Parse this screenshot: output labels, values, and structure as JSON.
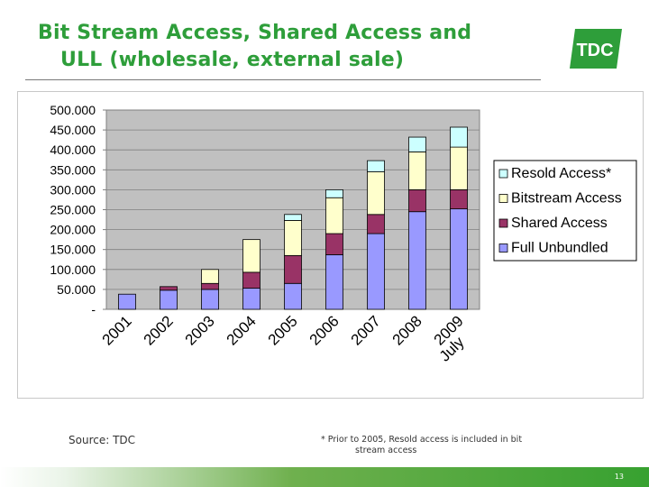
{
  "title": {
    "line1": "Bit Stream Access, Shared Access and",
    "line2": "ULL (wholesale, external sale)"
  },
  "logo": {
    "text": "TDC",
    "color": "#2e9e3a"
  },
  "source": "Source: TDC",
  "footnote": {
    "line1": "* Prior to 2005, Resold access is included in bit",
    "line2": "stream access"
  },
  "page_number": "13",
  "chart_data": {
    "type": "bar",
    "stacked": true,
    "categories": [
      "2001",
      "2002",
      "2003",
      "2004",
      "2005",
      "2006",
      "2007",
      "2008",
      "July 2009"
    ],
    "series": [
      {
        "name": "Full Unbundled",
        "color": "#9999ff",
        "values": [
          38000,
          48000,
          50000,
          53000,
          65000,
          137000,
          190000,
          245000,
          252000
        ]
      },
      {
        "name": "Shared Access",
        "color": "#993366",
        "values": [
          0,
          9000,
          15000,
          40000,
          70000,
          53000,
          48000,
          55000,
          48000
        ]
      },
      {
        "name": "Bitstream Access",
        "color": "#ffffcc",
        "values": [
          0,
          0,
          35000,
          82000,
          88000,
          90000,
          107000,
          95000,
          107000
        ]
      },
      {
        "name": "Resold Access*",
        "color": "#ccffff",
        "values": [
          0,
          0,
          0,
          0,
          15000,
          20000,
          28000,
          37000,
          50000
        ]
      }
    ],
    "ylim": [
      0,
      500000
    ],
    "yticks": [
      0,
      50000,
      100000,
      150000,
      200000,
      250000,
      300000,
      350000,
      400000,
      450000,
      500000
    ],
    "ytick_labels": [
      "-",
      "50.000",
      "100.000",
      "150.000",
      "200.000",
      "250.000",
      "300.000",
      "350.000",
      "400.000",
      "450.000",
      "500.000"
    ],
    "plot_background": "#c0c0c0",
    "grid": true,
    "legend_position": "right",
    "legend_order": [
      "Resold Access*",
      "Bitstream Access",
      "Shared Access",
      "Full Unbundled"
    ]
  }
}
